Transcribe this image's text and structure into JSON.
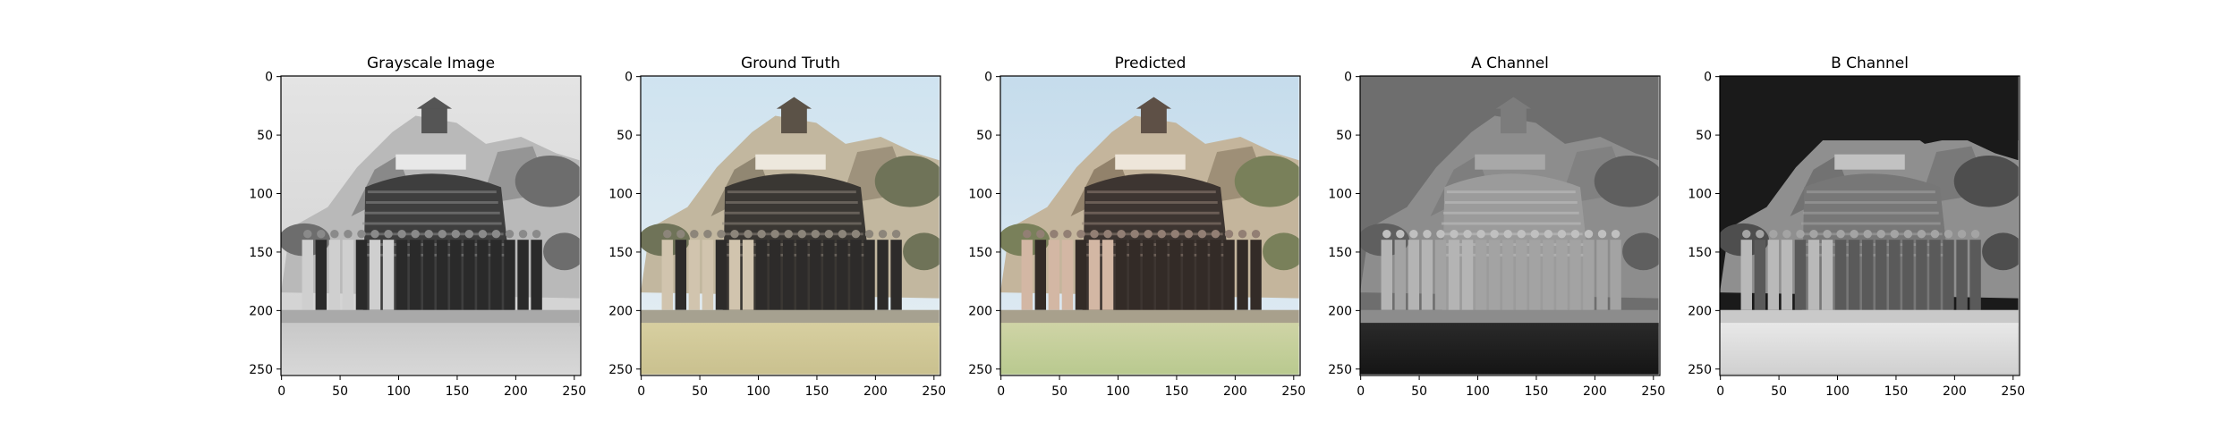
{
  "chart_data": [
    {
      "type": "image",
      "title": "Grayscale Image",
      "style": "grayscale",
      "xlim": [
        0,
        255
      ],
      "ylim": [
        255,
        0
      ],
      "xticks": [
        0,
        50,
        100,
        150,
        200,
        250
      ],
      "yticks": [
        0,
        50,
        100,
        150,
        200,
        250
      ],
      "xlabel": "",
      "ylabel": "",
      "grid": false
    },
    {
      "type": "image",
      "title": "Ground Truth",
      "style": "color",
      "xlim": [
        0,
        255
      ],
      "ylim": [
        255,
        0
      ],
      "xticks": [
        0,
        50,
        100,
        150,
        200,
        250
      ],
      "yticks": [
        0,
        50,
        100,
        150,
        200,
        250
      ],
      "xlabel": "",
      "ylabel": "",
      "grid": false
    },
    {
      "type": "image",
      "title": "Predicted",
      "style": "color-warm",
      "xlim": [
        0,
        255
      ],
      "ylim": [
        255,
        0
      ],
      "xticks": [
        0,
        50,
        100,
        150,
        200,
        250
      ],
      "yticks": [
        0,
        50,
        100,
        150,
        200,
        250
      ],
      "xlabel": "",
      "ylabel": "",
      "grid": false
    },
    {
      "type": "image",
      "title": "A Channel",
      "style": "a-channel",
      "xlim": [
        0,
        255
      ],
      "ylim": [
        255,
        0
      ],
      "xticks": [
        0,
        50,
        100,
        150,
        200,
        250
      ],
      "yticks": [
        0,
        50,
        100,
        150,
        200,
        250
      ],
      "xlabel": "",
      "ylabel": "",
      "grid": false
    },
    {
      "type": "image",
      "title": "B Channel",
      "style": "b-channel",
      "xlim": [
        0,
        255
      ],
      "ylim": [
        255,
        0
      ],
      "xticks": [
        0,
        50,
        100,
        150,
        200,
        250
      ],
      "yticks": [
        0,
        50,
        100,
        150,
        200,
        250
      ],
      "xlabel": "",
      "ylabel": "",
      "grid": false
    }
  ]
}
